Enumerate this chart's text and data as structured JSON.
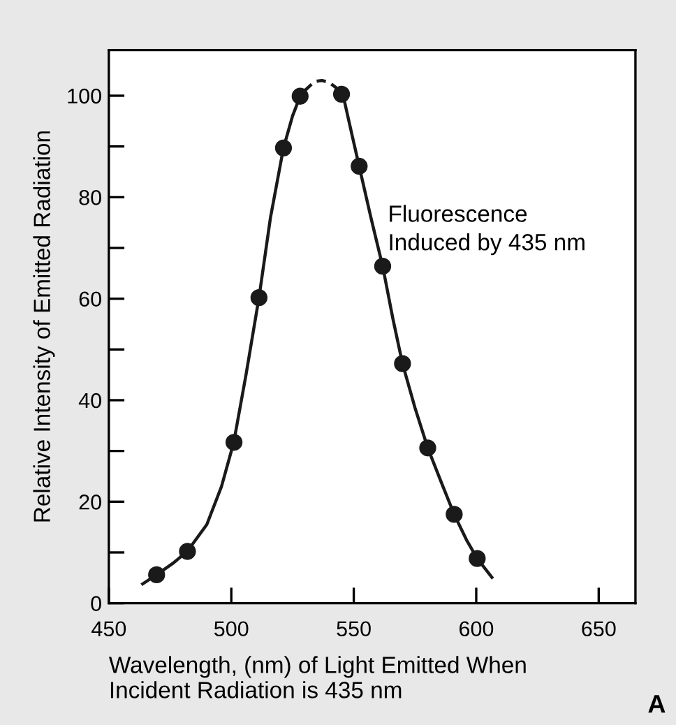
{
  "chart_data": {
    "type": "scatter",
    "xlabel": "Wavelength, (nm) of Light Emitted When\nIncident Radiation is 435 nm",
    "ylabel": "Relative Intensity of Emitted Radiation",
    "annotations": [
      "Fluorescence\nInduced by 435 nm",
      "A"
    ],
    "x": [
      469.5,
      482.1,
      501.1,
      511.3,
      521.3,
      528.1,
      545.0,
      552.2,
      561.8,
      569.9,
      580.2,
      591.0,
      600.4
    ],
    "series": [
      {
        "color": "#1a1a1a",
        "marker": "circle",
        "values": [
          5.6,
          10.2,
          31.7,
          60.2,
          89.7,
          99.9,
          100.3,
          86.1,
          66.4,
          47.2,
          30.6,
          17.5,
          8.8
        ]
      },
      {
        "type": "line",
        "color": "#1a1a1a",
        "line_style": "solid",
        "marker": "none",
        "x": [
          463.8,
          469.5,
          476,
          482,
          490,
          496,
          501,
          506,
          511.3,
          516,
          521.3,
          525,
          528.1,
          530,
          543,
          545,
          548,
          552.2,
          557,
          561.8,
          566,
          569.9,
          575,
          580.2,
          586,
          591,
          596,
          600.4,
          606.4
        ],
        "values": [
          3.8,
          5.6,
          7.8,
          10.2,
          15.5,
          23,
          31.7,
          45,
          60.2,
          76,
          89.7,
          96,
          99.9,
          101,
          null,
          101.5,
          95,
          86.1,
          76,
          66.4,
          56,
          47.2,
          38.5,
          30.6,
          23.5,
          17.5,
          12.5,
          8.8,
          5.1
        ]
      },
      {
        "type": "line",
        "color": "#1a1a1a",
        "line_style": "dashed",
        "marker": "none",
        "x": [
          530,
          534,
          537,
          540,
          543
        ],
        "values": [
          101,
          102.8,
          103,
          102.6,
          101.5
        ]
      }
    ],
    "xlim": [
      450,
      665
    ],
    "xticks": [
      450,
      500,
      550,
      600,
      650
    ],
    "ylim": [
      0,
      109
    ],
    "yticks": [
      0,
      {
        "value": 10,
        "label": null
      },
      20,
      {
        "value": 30,
        "label": null
      },
      40,
      {
        "value": 50,
        "label": null
      },
      60,
      {
        "value": 70,
        "label": null
      },
      80,
      {
        "value": 90,
        "label": null
      },
      100
    ],
    "grid": false,
    "legend": false
  }
}
